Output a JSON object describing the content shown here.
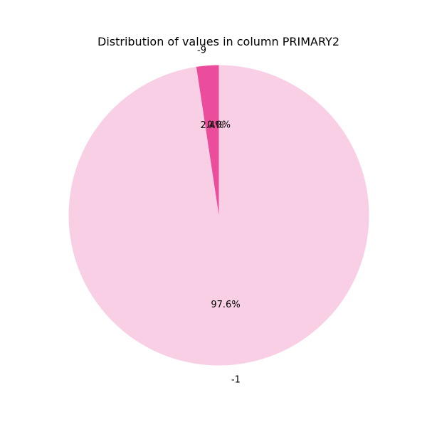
{
  "chart_data": {
    "type": "pie",
    "title": "Distribution of values in column PRIMARY2",
    "start_angle_deg": 90,
    "direction": "counterclockwise",
    "slices": [
      {
        "label": "-9",
        "value": 2.4,
        "pct_label": "2.4%",
        "color": "#eb4c9c"
      },
      {
        "label": "-1",
        "value": 97.6,
        "pct_label": "97.6%",
        "color": "#f9cfe6"
      },
      {
        "label": "",
        "value": 0.0,
        "pct_label": "0.0%",
        "color": "#000000"
      }
    ],
    "legend": "none",
    "grid": false
  }
}
